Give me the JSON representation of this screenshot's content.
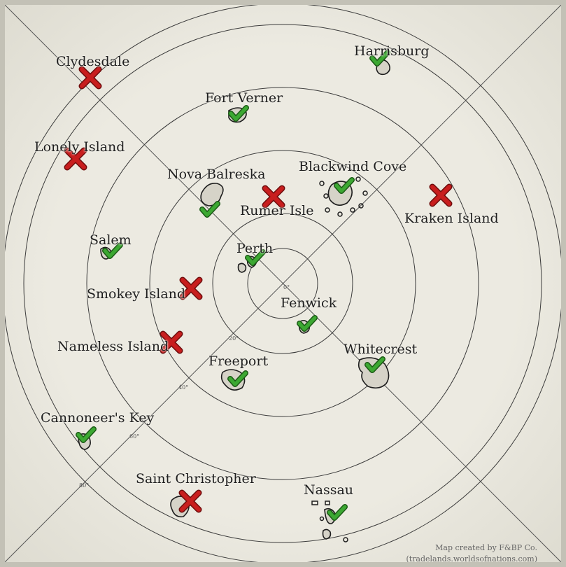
{
  "map": {
    "credit_line1": "Map created by F&BP Co.",
    "credit_line2": "(tradelands.worldsofnations.com)",
    "degree_labels": [
      "0°",
      "20°",
      "40°",
      "60°",
      "80°"
    ],
    "colors": {
      "parchment": "#eceae1",
      "border": "#c3c1b6",
      "rings": "#3c3c3c",
      "check": "#3ca832",
      "cross": "#c81e1e"
    }
  },
  "locations": [
    {
      "name": "Clydesdale",
      "status": "cross",
      "icon": "cross-mark-icon"
    },
    {
      "name": "Harrisburg",
      "status": "check",
      "icon": "check-mark-icon"
    },
    {
      "name": "Fort Verner",
      "status": "check",
      "icon": "check-mark-icon"
    },
    {
      "name": "Lonely Island",
      "status": "cross",
      "icon": "cross-mark-icon"
    },
    {
      "name": "Nova Balreska",
      "status": "check",
      "icon": "check-mark-icon"
    },
    {
      "name": "Blackwind Cove",
      "status": "check",
      "icon": "check-mark-icon"
    },
    {
      "name": "Rumer Isle",
      "status": "cross",
      "icon": "cross-mark-icon"
    },
    {
      "name": "Kraken Island",
      "status": "cross",
      "icon": "cross-mark-icon"
    },
    {
      "name": "Salem",
      "status": "check",
      "icon": "check-mark-icon"
    },
    {
      "name": "Perth",
      "status": "check",
      "icon": "check-mark-icon"
    },
    {
      "name": "Smokey Island",
      "status": "cross",
      "icon": "cross-mark-icon"
    },
    {
      "name": "Fenwick",
      "status": "check",
      "icon": "check-mark-icon"
    },
    {
      "name": "Nameless Island",
      "status": "cross",
      "icon": "cross-mark-icon"
    },
    {
      "name": "Freeport",
      "status": "check",
      "icon": "check-mark-icon"
    },
    {
      "name": "Whitecrest",
      "status": "check",
      "icon": "check-mark-icon"
    },
    {
      "name": "Cannoneer's Key",
      "status": "check",
      "icon": "check-mark-icon"
    },
    {
      "name": "Saint Christopher",
      "status": "cross",
      "icon": "cross-mark-icon"
    },
    {
      "name": "Nassau",
      "status": "check",
      "icon": "check-mark-icon"
    }
  ]
}
